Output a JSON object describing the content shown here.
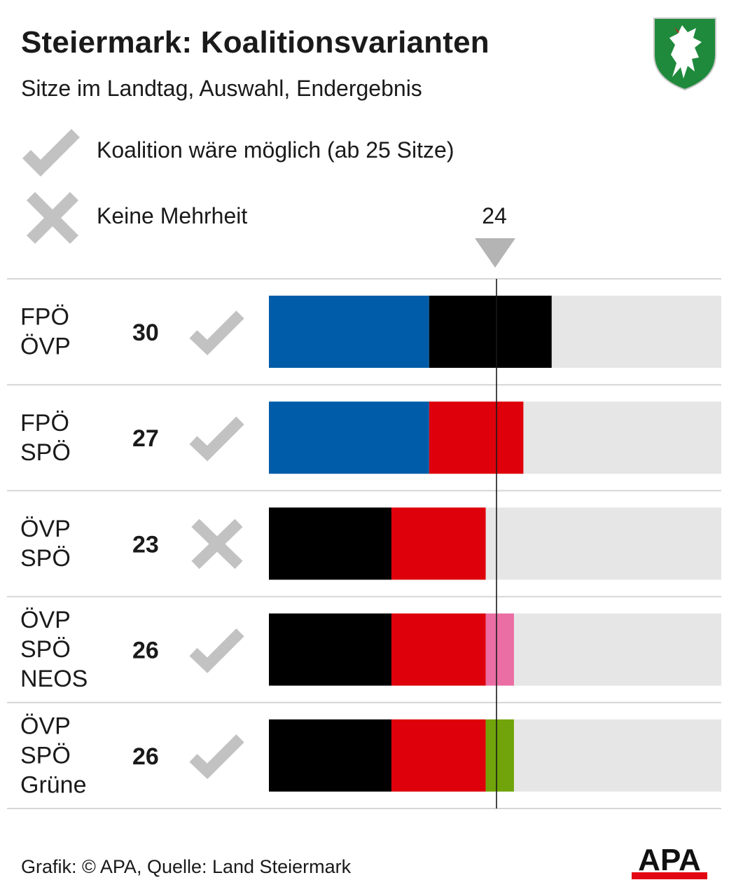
{
  "header": {
    "title": "Steiermark: Koalitionsvarianten",
    "subtitle": "Sitze im Landtag, Auswahl, Endergebnis"
  },
  "legend": {
    "possible_label": "Koalition wäre möglich (ab 25 Sitze)",
    "possible_icon": "checkmark-icon",
    "no_majority_label": "Keine Mehrheit",
    "no_majority_icon": "cross-icon"
  },
  "threshold": {
    "label": "24",
    "value": 24
  },
  "colors": {
    "FPÖ": "#005ca8",
    "ÖVP": "#000000",
    "SPÖ": "#de000a",
    "NEOS": "#ea6ea3",
    "Grüne": "#70a40a",
    "track": "#e6e6e6",
    "icon": "#c2c2c2",
    "divider": "#d6d6d6",
    "threshold_line": "#1a1a1a"
  },
  "chart_data": {
    "type": "bar",
    "orientation": "horizontal",
    "stacked": true,
    "xlim": [
      0,
      48
    ],
    "threshold": 24,
    "rows": [
      {
        "parties": [
          "FPÖ",
          "ÖVP"
        ],
        "seats": [
          17,
          13
        ],
        "total": "30",
        "majority": true
      },
      {
        "parties": [
          "FPÖ",
          "SPÖ"
        ],
        "seats": [
          17,
          10
        ],
        "total": "27",
        "majority": true
      },
      {
        "parties": [
          "ÖVP",
          "SPÖ"
        ],
        "seats": [
          13,
          10
        ],
        "total": "23",
        "majority": false
      },
      {
        "parties": [
          "ÖVP",
          "SPÖ",
          "NEOS"
        ],
        "seats": [
          13,
          10,
          3
        ],
        "total": "26",
        "majority": true
      },
      {
        "parties": [
          "ÖVP",
          "SPÖ",
          "Grüne"
        ],
        "seats": [
          13,
          10,
          3
        ],
        "total": "26",
        "majority": true
      }
    ]
  },
  "footer": {
    "credit": "Grafik: © APA, Quelle: Land Steiermark",
    "logo_text": "APA"
  }
}
